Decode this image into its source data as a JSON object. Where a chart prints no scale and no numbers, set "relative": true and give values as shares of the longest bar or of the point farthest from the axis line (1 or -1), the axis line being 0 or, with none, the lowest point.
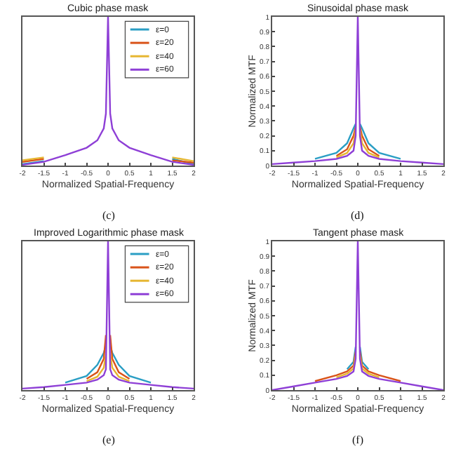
{
  "chart_data": [
    {
      "type": "line",
      "title": "Cubic phase mask",
      "xlabel": "Normalized Spatial-Frequency",
      "annotations": [
        "(c)"
      ],
      "x": [
        -2,
        -1.5,
        -1,
        -0.5,
        -0.25,
        -0.1,
        -0.05,
        0,
        0.05,
        0.1,
        0.25,
        0.5,
        1,
        1.5,
        2
      ],
      "xlim": [
        -2,
        2
      ],
      "xticks": [
        -2,
        -1.5,
        -1,
        -0.5,
        0,
        0.5,
        1,
        1.5,
        2
      ],
      "relative": true,
      "tick_labels": "x",
      "legend": "top right",
      "series": [
        {
          "name": "ε=0",
          "color": "#2a9ec4",
          "values": [
            0.01,
            0.03,
            null,
            null,
            null,
            null,
            null,
            null,
            null,
            null,
            null,
            null,
            null,
            0.045,
            0.01
          ]
        },
        {
          "name": "ε=20",
          "color": "#d95319",
          "values": [
            0.025,
            0.045,
            null,
            null,
            null,
            null,
            null,
            null,
            null,
            null,
            null,
            null,
            null,
            0.035,
            0.02
          ]
        },
        {
          "name": "ε=40",
          "color": "#e6b631",
          "values": [
            0.035,
            0.055,
            null,
            null,
            null,
            null,
            null,
            null,
            null,
            null,
            null,
            null,
            null,
            0.055,
            0.03
          ]
        },
        {
          "name": "ε=60",
          "color": "#8e3fd6",
          "values": [
            0.005,
            0.025,
            0.07,
            0.12,
            0.17,
            0.25,
            0.35,
            1,
            0.35,
            0.25,
            0.17,
            0.12,
            0.07,
            0.025,
            0.005
          ]
        }
      ]
    },
    {
      "type": "line",
      "title": "Sinusoidal phase mask",
      "xlabel": "Normalized Spatial-Frequency",
      "ylabel": "Normalized MTF",
      "annotations": [
        "(d)"
      ],
      "x": [
        -2,
        -1.5,
        -1,
        -0.5,
        -0.25,
        -0.1,
        -0.05,
        0,
        0.05,
        0.1,
        0.25,
        0.5,
        1,
        1.5,
        2
      ],
      "xlim": [
        -2,
        2
      ],
      "xticks": [
        -2,
        -1.5,
        -1,
        -0.5,
        0,
        0.5,
        1,
        1.5,
        2
      ],
      "ylim": [
        0,
        1
      ],
      "yticks": [
        0,
        0.1,
        0.2,
        0.3,
        0.4,
        0.5,
        0.6,
        0.7,
        0.8,
        0.9,
        1
      ],
      "series": [
        {
          "color": "#2a9ec4",
          "values": [
            null,
            null,
            0.045,
            0.085,
            0.15,
            0.25,
            0.28,
            null,
            0.28,
            0.25,
            0.15,
            0.085,
            0.045,
            null,
            null
          ]
        },
        {
          "color": "#d95319",
          "values": [
            null,
            null,
            null,
            0.065,
            0.11,
            0.2,
            0.26,
            null,
            0.26,
            0.2,
            0.11,
            0.065,
            null,
            null,
            null
          ]
        },
        {
          "color": "#e6b631",
          "values": [
            null,
            null,
            null,
            0.055,
            0.085,
            0.15,
            0.24,
            null,
            0.24,
            0.15,
            0.085,
            0.055,
            null,
            null,
            null
          ]
        },
        {
          "color": "#8e3fd6",
          "values": [
            0.01,
            0.02,
            0.03,
            0.045,
            0.065,
            0.1,
            0.2,
            1,
            0.2,
            0.1,
            0.065,
            0.045,
            0.03,
            0.02,
            0.01
          ]
        }
      ]
    },
    {
      "type": "line",
      "title": "Improved Logarithmic phase mask",
      "xlabel": "Normalized Spatial-Frequency",
      "annotations": [
        "(e)"
      ],
      "x": [
        -2,
        -1.5,
        -1,
        -0.5,
        -0.25,
        -0.1,
        -0.05,
        0,
        0.05,
        0.1,
        0.25,
        0.5,
        1,
        1.5,
        2
      ],
      "xlim": [
        -2,
        2
      ],
      "xticks": [
        -2,
        -1.5,
        -1,
        -0.5,
        0,
        0.5,
        1,
        1.5,
        2
      ],
      "relative": true,
      "tick_labels": "x",
      "legend": "top right",
      "series": [
        {
          "name": "ε=0",
          "color": "#2a9ec4",
          "values": [
            null,
            null,
            0.05,
            0.095,
            0.17,
            0.25,
            0.3,
            null,
            0.3,
            0.25,
            0.17,
            0.095,
            0.05,
            null,
            null
          ]
        },
        {
          "name": "ε=20",
          "color": "#d95319",
          "values": [
            null,
            null,
            null,
            0.075,
            0.12,
            0.21,
            0.37,
            null,
            0.37,
            0.21,
            0.12,
            0.075,
            null,
            null,
            null
          ]
        },
        {
          "name": "ε=40",
          "color": "#e6b631",
          "values": [
            null,
            null,
            null,
            0.06,
            0.09,
            0.15,
            0.24,
            null,
            0.24,
            0.15,
            0.09,
            0.06,
            null,
            null,
            null
          ]
        },
        {
          "name": "ε=60",
          "color": "#8e3fd6",
          "values": [
            0.01,
            0.02,
            0.035,
            0.05,
            0.07,
            0.1,
            0.14,
            1,
            0.14,
            0.1,
            0.07,
            0.05,
            0.035,
            0.02,
            0.01
          ]
        }
      ]
    },
    {
      "type": "line",
      "title": "Tangent phase mask",
      "xlabel": "Normalized Spatial-Frequency",
      "ylabel": "Normalized MTF",
      "annotations": [
        "(f)"
      ],
      "x": [
        -2,
        -1.5,
        -1,
        -0.5,
        -0.25,
        -0.1,
        -0.05,
        0,
        0.05,
        0.1,
        0.25,
        0.5,
        1,
        1.5,
        2
      ],
      "xlim": [
        -2,
        2
      ],
      "xticks": [
        -2,
        -1.5,
        -1,
        -0.5,
        0,
        0.5,
        1,
        1.5,
        2
      ],
      "ylim": [
        0,
        1
      ],
      "yticks": [
        0,
        0.1,
        0.2,
        0.3,
        0.4,
        0.5,
        0.6,
        0.7,
        0.8,
        0.9,
        1
      ],
      "series": [
        {
          "color": "#2a9ec4",
          "values": [
            null,
            null,
            null,
            null,
            0.14,
            0.19,
            0.29,
            null,
            0.29,
            0.19,
            0.14,
            null,
            null,
            null,
            null
          ]
        },
        {
          "color": "#d95319",
          "values": [
            null,
            null,
            0.06,
            0.1,
            0.125,
            0.165,
            0.26,
            null,
            0.26,
            0.165,
            0.125,
            0.1,
            0.06,
            null,
            null
          ]
        },
        {
          "color": "#e6b631",
          "values": [
            null,
            null,
            null,
            0.085,
            0.11,
            0.145,
            0.235,
            null,
            0.235,
            0.145,
            0.11,
            0.085,
            null,
            null,
            null
          ]
        },
        {
          "color": "#8e3fd6",
          "values": [
            0.0,
            0.025,
            0.05,
            0.075,
            0.095,
            0.125,
            0.21,
            1,
            0.21,
            0.125,
            0.095,
            0.075,
            0.05,
            0.025,
            0.0
          ]
        }
      ]
    }
  ]
}
